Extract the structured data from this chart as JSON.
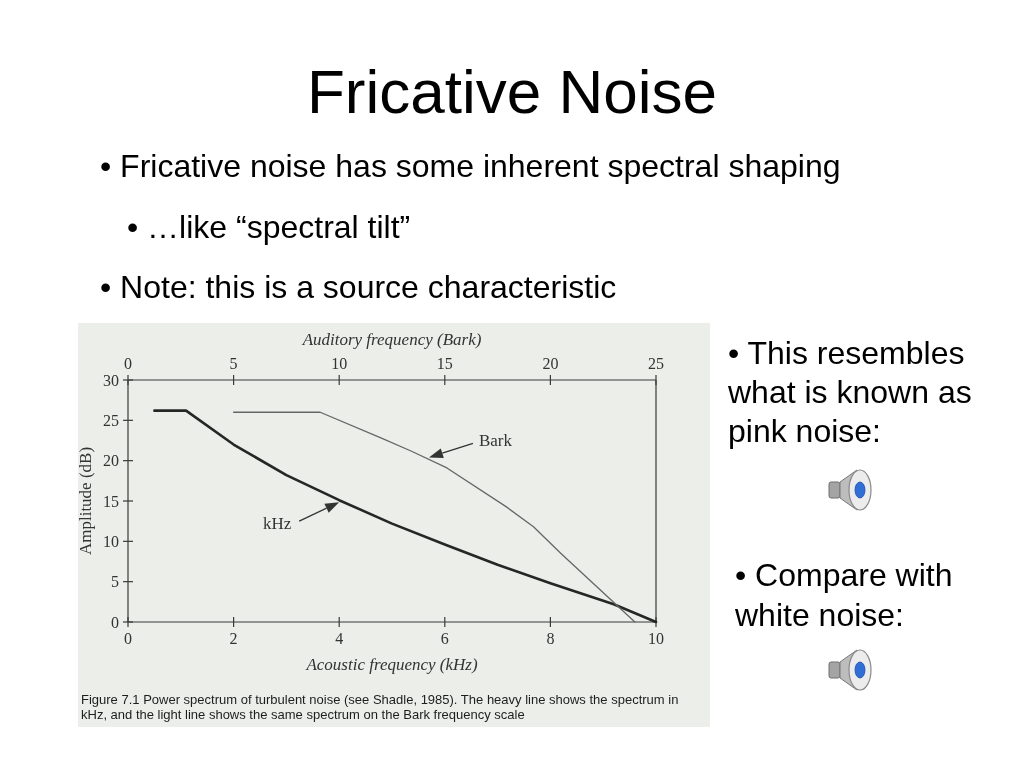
{
  "chart_data": {
    "type": "line",
    "title": "Fricative Noise",
    "xlabel": "Acoustic frequency (kHz)",
    "x2label": "Auditory frequency (Bark)",
    "ylabel": "Amplitude (dB)",
    "xlim": [
      0,
      10
    ],
    "xticks": [
      0,
      2,
      4,
      6,
      8,
      10
    ],
    "x2lim": [
      0,
      25
    ],
    "x2ticks": [
      0,
      5,
      10,
      15,
      20,
      25
    ],
    "ylim": [
      0,
      30
    ],
    "yticks": [
      0,
      5,
      10,
      15,
      20,
      25,
      30
    ],
    "series": [
      {
        "color": "#262626",
        "x": [
          0.5,
          1.1,
          2.0,
          3.0,
          4.0,
          5.0,
          6.0,
          7.0,
          8.0,
          9.2,
          10.0
        ],
        "values": [
          26.2,
          26.2,
          22,
          18.2,
          15.1,
          12.2,
          9.6,
          7.1,
          4.8,
          2.2,
          0
        ]
      },
      {
        "color": "#666666",
        "axis": "x2",
        "x": [
          5.0,
          9.1,
          12,
          13.4,
          15.1,
          17.9,
          19.2,
          20.5,
          24
        ],
        "values": [
          26,
          26,
          22.8,
          21.2,
          19.1,
          14.3,
          11.8,
          8.5,
          0
        ]
      }
    ],
    "annotations": [
      "• Fricative noise has some inherent spectral shaping",
      "• …like “spectral tilt”",
      "• Note: this is a source characteristic",
      "• This resembles what is known as pink noise:",
      "• Compare with white noise:",
      "Figure 7.1 Power spectrum of turbulent noise (see Shadle, 1985). The heavy line shows the spectrum in kHz, and the light line shows the same spectrum on the Bark frequency scale",
      {
        "text": "kHz",
        "x": 4.0,
        "y": 15.1
      },
      {
        "text": "Bark",
        "x": 5.7,
        "y": 20.15
      }
    ]
  }
}
